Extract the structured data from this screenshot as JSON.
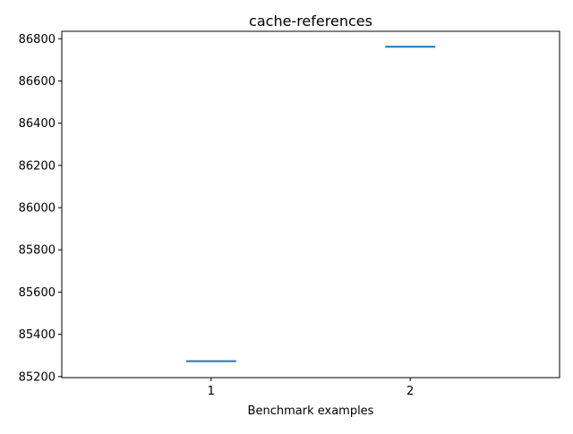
{
  "chart_data": {
    "type": "line",
    "title": "cache-references",
    "xlabel": "Benchmark examples",
    "ylabel": "",
    "categories": [
      "1",
      "2"
    ],
    "yticks": [
      85200,
      85400,
      85600,
      85800,
      86000,
      86200,
      86400,
      86600,
      86800
    ],
    "ylim": [
      85195,
      86835
    ],
    "xlim": [
      0.25,
      2.75
    ],
    "series": [
      {
        "color": "#1f77b4",
        "values": [
          85273,
          86762
        ]
      }
    ],
    "grid": false,
    "legend": "none"
  }
}
